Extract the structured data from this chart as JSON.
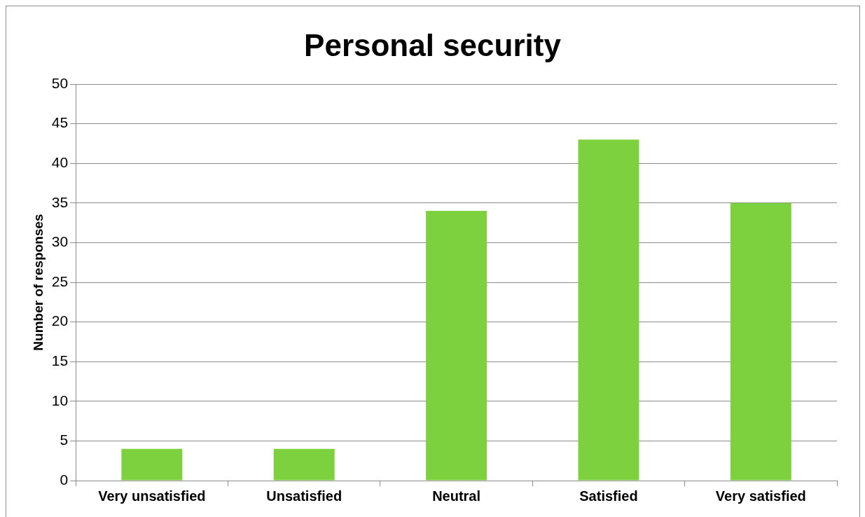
{
  "chart_data": {
    "type": "bar",
    "title": "Personal security",
    "ylabel": "Number of responses",
    "categories": [
      "Very unsatisfied",
      "Unsatisfied",
      "Neutral",
      "Satisfied",
      "Very satisfied"
    ],
    "values": [
      4,
      4,
      34,
      43,
      35
    ],
    "color": "#7ed13e",
    "ylim": [
      0,
      50
    ],
    "yticks": [
      0,
      5,
      10,
      15,
      20,
      25,
      30,
      35,
      40,
      45,
      50
    ],
    "grid": "y"
  }
}
